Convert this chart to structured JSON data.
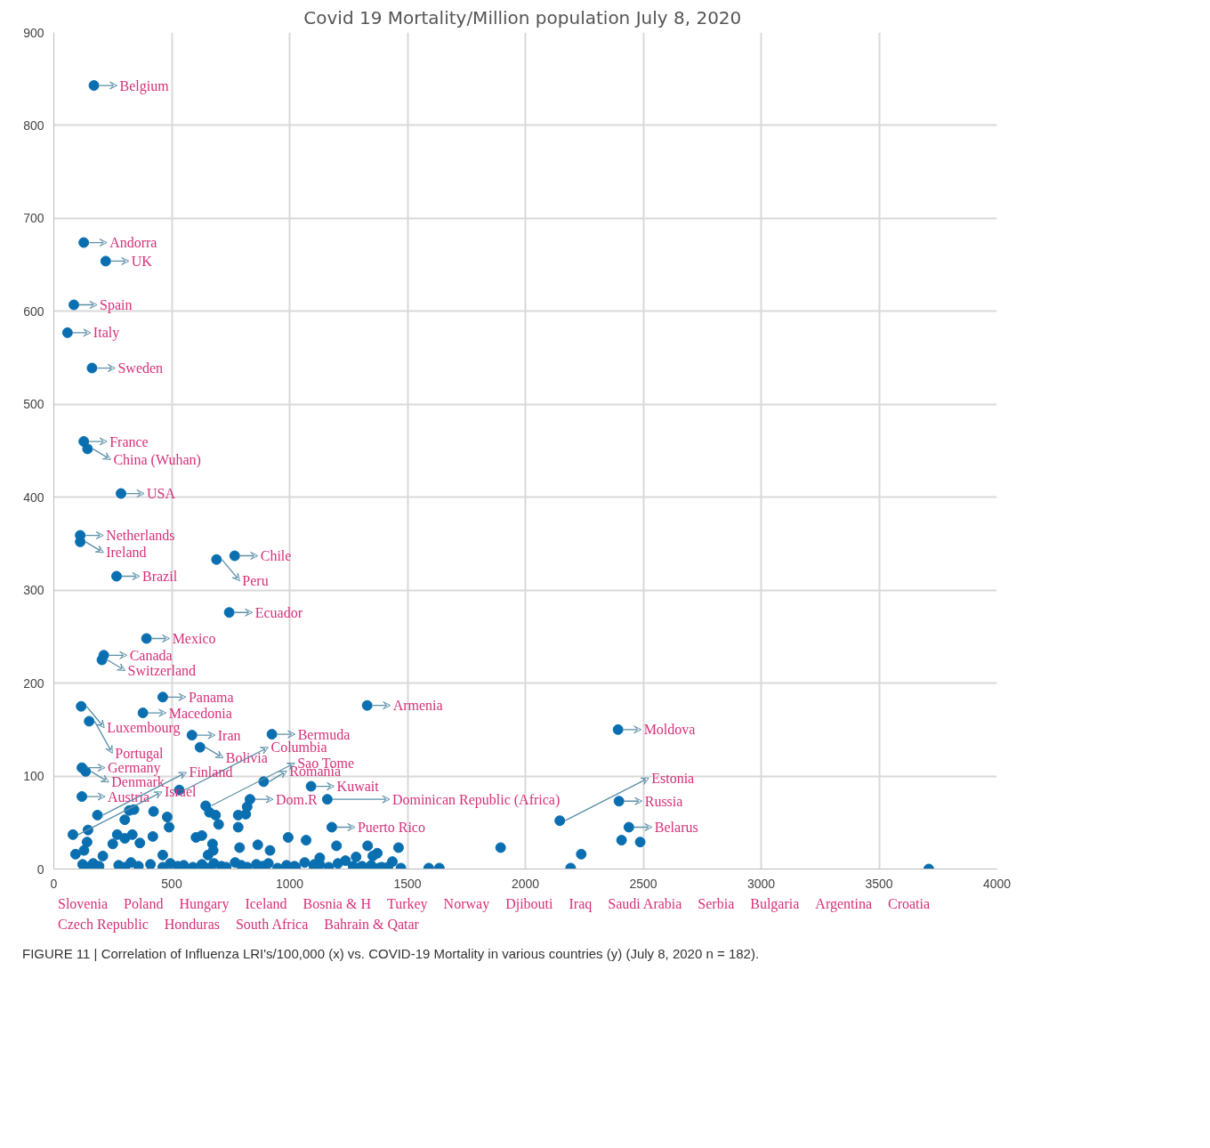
{
  "chart_data": {
    "type": "scatter",
    "title": "Covid 19 Mortality/Million population  July 8, 2020",
    "xlim": [
      0,
      4000
    ],
    "ylim": [
      0,
      900
    ],
    "xticks": [
      0,
      500,
      1000,
      1500,
      2000,
      2500,
      3000,
      3500,
      4000
    ],
    "yticks": [
      0,
      100,
      200,
      300,
      400,
      500,
      600,
      700,
      800,
      900
    ],
    "grid": true,
    "marker": "circle",
    "series": [
      {
        "color": "#0a6fb0",
        "x": [
          170,
          127,
          220,
          85,
          58,
          162,
          127,
          143,
          285,
          112,
          112,
          266,
          767,
          690,
          744,
          393,
          212,
          204,
          116,
          462,
          378,
          150,
          586,
          620,
          925,
          1329,
          2393,
          119,
          135,
          890,
          532,
          1091,
          119,
          644,
          832,
          1160,
          1179,
          2146,
          2397,
          2439,
          185,
          81,
          301,
          320,
          340,
          423,
          481,
          489,
          420,
          145,
          128,
          141,
          92,
          208,
          269,
          301,
          333,
          250,
          365,
          603,
          628,
          673,
          676,
          654,
          462,
          660,
          686,
          699,
          782,
          782,
          814,
          820,
          788,
          865,
          917,
          994,
          1070,
          1199,
          1331,
          1372,
          1462,
          1353,
          1237,
          1282,
          1436,
          1308,
          1378,
          1417,
          1472,
          1590,
          1635,
          1128,
          1895,
          2237,
          2192,
          2408,
          2487,
          3711,
          122,
          141,
          167,
          192,
          275,
          301,
          327,
          359,
          410,
          462,
          494,
          526,
          551,
          590,
          628,
          654,
          679,
          711,
          731,
          769,
          795,
          820,
          859,
          885,
          910,
          949,
          987,
          1026,
          1064,
          1103,
          1128,
          1166,
          1205,
          1269,
          1301,
          1346,
          1391,
          1020,
          1105
        ],
        "values": [
          843,
          674,
          654,
          607,
          577,
          539,
          460,
          452,
          404,
          359,
          352,
          315,
          337,
          333,
          276,
          248,
          230,
          225,
          175,
          185,
          168,
          159,
          144,
          131,
          145,
          176,
          150,
          109,
          105,
          94,
          85,
          89,
          78,
          68,
          75,
          75,
          45,
          52,
          73,
          45,
          58,
          37,
          53,
          63,
          64,
          62,
          56,
          45,
          35,
          42,
          20,
          29,
          16,
          14,
          37,
          33,
          37,
          27,
          28,
          34,
          36,
          27,
          20,
          15,
          15,
          61,
          58,
          48,
          45,
          58,
          59,
          67,
          23,
          26,
          20,
          34,
          31,
          25,
          25,
          17,
          23,
          14,
          9,
          13,
          8,
          3,
          1,
          2,
          1,
          1,
          1,
          12,
          23,
          16,
          1,
          31,
          29,
          0,
          5,
          2,
          6,
          3,
          4,
          2,
          7,
          3,
          5,
          2,
          6,
          3,
          4,
          2,
          5,
          1,
          6,
          3,
          2,
          7,
          4,
          2,
          5,
          3,
          6,
          1,
          4,
          2,
          7,
          3,
          5,
          2,
          6,
          3,
          2,
          4,
          2,
          3,
          5
        ]
      }
    ],
    "annotations": [
      {
        "text": "Belgium",
        "x": 170,
        "y": 843
      },
      {
        "text": "Andorra",
        "x": 127,
        "y": 674
      },
      {
        "text": "UK",
        "x": 220,
        "y": 654
      },
      {
        "text": "Spain",
        "x": 85,
        "y": 607
      },
      {
        "text": "Italy",
        "x": 58,
        "y": 577
      },
      {
        "text": "Sweden",
        "x": 162,
        "y": 539
      },
      {
        "text": "France",
        "x": 127,
        "y": 460
      },
      {
        "text": "China (Wuhan)",
        "x": 143,
        "y": 452
      },
      {
        "text": "USA",
        "x": 285,
        "y": 404
      },
      {
        "text": "Netherlands",
        "x": 112,
        "y": 359
      },
      {
        "text": "Ireland",
        "x": 112,
        "y": 352
      },
      {
        "text": "Brazil",
        "x": 266,
        "y": 315
      },
      {
        "text": "Chile",
        "x": 767,
        "y": 337
      },
      {
        "text": "Peru",
        "x": 690,
        "y": 333
      },
      {
        "text": "Ecuador",
        "x": 744,
        "y": 276
      },
      {
        "text": "Mexico",
        "x": 393,
        "y": 248
      },
      {
        "text": "Canada",
        "x": 212,
        "y": 230
      },
      {
        "text": "Switzerland",
        "x": 204,
        "y": 225
      },
      {
        "text": "Luxembourg",
        "x": 116,
        "y": 175
      },
      {
        "text": "Panama",
        "x": 462,
        "y": 185
      },
      {
        "text": "Macedonia",
        "x": 378,
        "y": 168
      },
      {
        "text": "Portugal",
        "x": 150,
        "y": 159
      },
      {
        "text": "Iran",
        "x": 586,
        "y": 144
      },
      {
        "text": "Bolivia",
        "x": 620,
        "y": 131
      },
      {
        "text": "Bermuda",
        "x": 925,
        "y": 145
      },
      {
        "text": "Armenia",
        "x": 1329,
        "y": 176
      },
      {
        "text": "Moldova",
        "x": 2393,
        "y": 150
      },
      {
        "text": "Germany",
        "x": 119,
        "y": 109
      },
      {
        "text": "Denmark",
        "x": 135,
        "y": 105
      },
      {
        "text": "Romania",
        "x": 890,
        "y": 94
      },
      {
        "text": "Columbia",
        "x": 532,
        "y": 85
      },
      {
        "text": "Kuwait",
        "x": 1091,
        "y": 89
      },
      {
        "text": "Austria",
        "x": 119,
        "y": 78
      },
      {
        "text": "Sao Tome",
        "x": 644,
        "y": 68
      },
      {
        "text": "Dom.R",
        "x": 832,
        "y": 75
      },
      {
        "text": "Dominican Republic (Africa)",
        "x": 1160,
        "y": 75
      },
      {
        "text": "Puerto Rico",
        "x": 1179,
        "y": 45
      },
      {
        "text": "Estonia",
        "x": 2146,
        "y": 52
      },
      {
        "text": "Russia",
        "x": 2397,
        "y": 73
      },
      {
        "text": "Belarus",
        "x": 2439,
        "y": 45
      },
      {
        "text": "Finland",
        "x": 185,
        "y": 58
      },
      {
        "text": "Israel",
        "x": 81,
        "y": 37
      },
      "Slovenia",
      "Poland",
      "Hungary",
      "Iceland",
      "Bosnia & H",
      "Turkey",
      "Norway",
      "Djibouti",
      "Iraq",
      "Saudi Arabia",
      "Serbia",
      "Bulgaria",
      "Argentina",
      "Croatia",
      "Czech Republic",
      "Honduras",
      "South Africa",
      "Bahrain & Qatar",
      "FIGURE 11 | Correlation of Influenza LRI's/100,000 (x) vs. COVID-19 Mortality in various countries (y) (July 8, 2020 n = 182)."
    ]
  }
}
